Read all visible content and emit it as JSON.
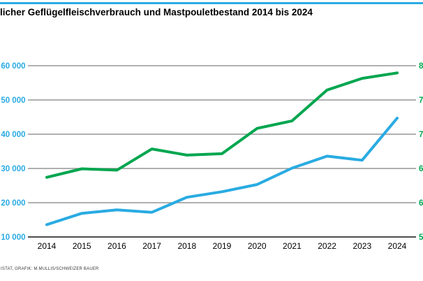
{
  "page": {
    "title": "licher Geflügelfleischverbrauch und Mastpouletbestand 2014 bis 2024",
    "credit": "ISTAT, GRAFIK: M.MULLIS/SCHWEIZER BAUER"
  },
  "colors": {
    "blue": "#29ABE2",
    "green": "#00A64F",
    "grid": "#969696",
    "axis_baseline": "#4D4D4D",
    "text": "#000000"
  },
  "chart_data": {
    "type": "line",
    "title": "licher Geflügelfleischverbrauch und Mastpouletbestand 2014 bis 2024",
    "categories": [
      2014,
      2015,
      2016,
      2017,
      2018,
      2019,
      2020,
      2021,
      2022,
      2023,
      2024
    ],
    "series": [
      {
        "id": "verbrauch-blue-line",
        "color_key": "blue",
        "values": [
          13600,
          16900,
          17900,
          17200,
          21600,
          23200,
          25300,
          30100,
          33600,
          32400,
          44700
        ]
      },
      {
        "id": "bestand-green-line",
        "color_key": "green",
        "values": [
          27400,
          29900,
          29500,
          35700,
          33900,
          34300,
          41700,
          43900,
          52900,
          56300,
          57900
        ]
      }
    ],
    "left_axis": {
      "tick_labels": [
        "60 000",
        "50 000",
        "40 000",
        "30 000",
        "20 000",
        "10 000"
      ],
      "tick_values": [
        60000,
        50000,
        40000,
        30000,
        20000,
        10000
      ],
      "range": [
        10000,
        60000
      ]
    },
    "right_axis": {
      "visible_fragments": [
        "8",
        "7",
        "7",
        "6",
        "6",
        "5"
      ]
    },
    "grid": "horizontal-only",
    "legend": "none"
  }
}
